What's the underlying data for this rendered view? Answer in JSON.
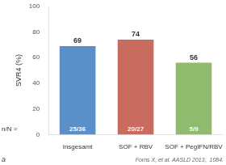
{
  "chart_data": {
    "type": "bar",
    "categories": [
      "Insgesamt",
      "SOF + RBV",
      "SOF + PegIFN/RBV"
    ],
    "values": [
      69,
      74,
      56
    ],
    "colors": [
      "#5b8fc9",
      "#c96b5e",
      "#8fbb6e"
    ],
    "ylabel": "SVR4 (%)",
    "ylim": [
      0,
      100
    ],
    "yticks": [
      0,
      20,
      40,
      60,
      80,
      100
    ],
    "grid": false,
    "data_labels": true,
    "fraction_labels": [
      "25/36",
      "20/27",
      "5/9"
    ],
    "annotations": [
      "n/N =",
      "Forns X, et al. AASLD 2013,  1084.",
      "a"
    ]
  }
}
